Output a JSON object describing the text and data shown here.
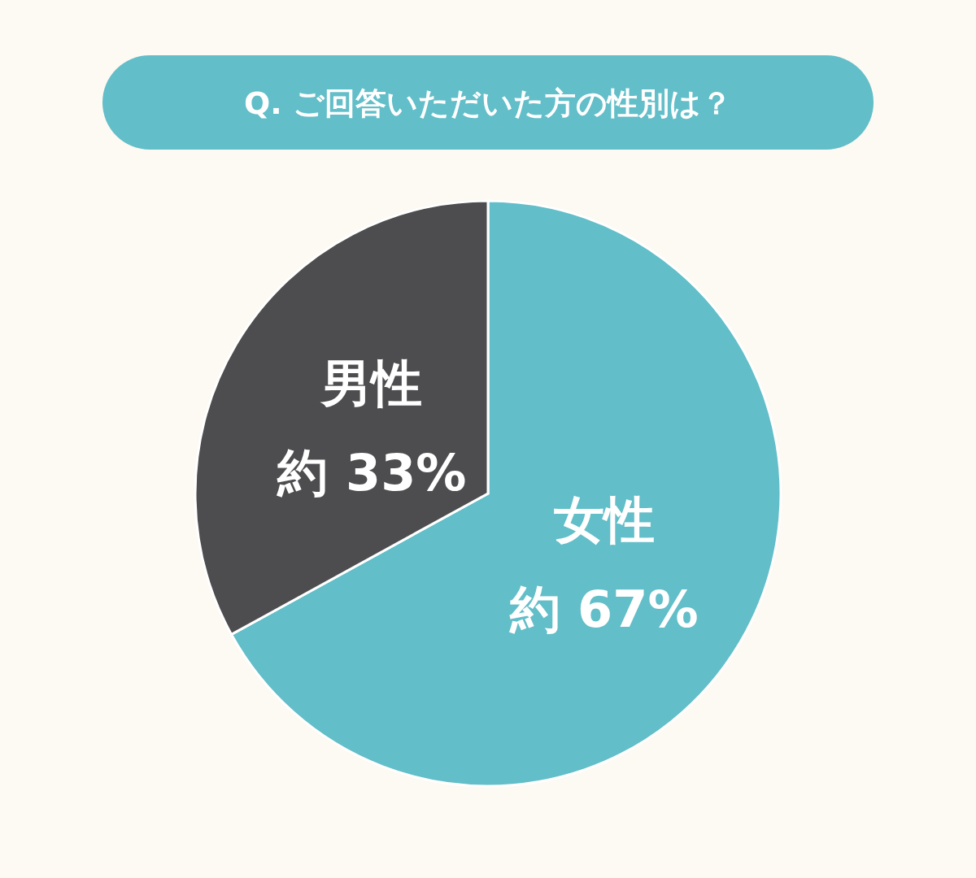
{
  "chart_data": {
    "type": "pie",
    "title": "Q. ご回答いただいた方の性別は？",
    "categories": [
      "女性",
      "男性"
    ],
    "values": [
      67,
      33
    ],
    "colors": [
      "#62bec8",
      "#4d4d4f"
    ],
    "value_labels": [
      "約 67%",
      "約 33%"
    ]
  }
}
